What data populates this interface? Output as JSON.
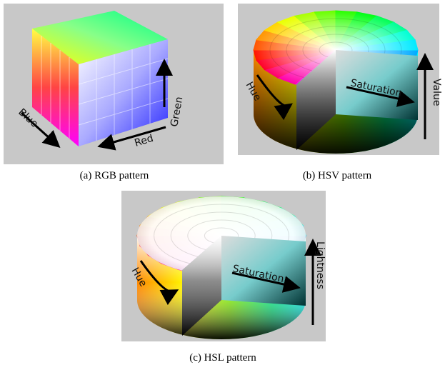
{
  "figure": {
    "panels": [
      {
        "caption": "(a) RGB pattern",
        "labels": [
          "Blue",
          "Red",
          "Green"
        ]
      },
      {
        "caption": "(b) HSV pattern",
        "labels": [
          "Hue",
          "Saturation",
          "Value"
        ]
      },
      {
        "caption": "(c) HSL pattern",
        "labels": [
          "Hue",
          "Saturation",
          "Lightness"
        ]
      }
    ]
  }
}
